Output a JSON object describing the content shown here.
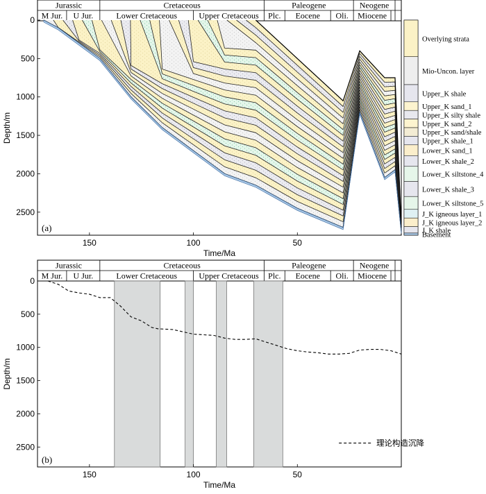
{
  "chart_data": [
    {
      "type": "area",
      "panel_label": "(a)",
      "xlabel": "Time/Ma",
      "ylabel": "Depth/m",
      "xlim": [
        175,
        0
      ],
      "ylim": [
        2800,
        0
      ],
      "xticks": [
        150,
        100,
        50
      ],
      "yticks": [
        0,
        500,
        1000,
        1500,
        2000,
        2500
      ],
      "periods": [
        {
          "name": "Jurassic",
          "start": 175,
          "end": 145
        },
        {
          "name": "Cretaceous",
          "start": 145,
          "end": 66
        },
        {
          "name": "Paleogene",
          "start": 66,
          "end": 23
        },
        {
          "name": "Neogene",
          "start": 23,
          "end": 3
        },
        {
          "name": "",
          "start": 3,
          "end": 0
        }
      ],
      "epochs": [
        {
          "name": "M Jur.",
          "start": 175,
          "end": 161
        },
        {
          "name": "U Jur.",
          "start": 161,
          "end": 145
        },
        {
          "name": "Lower Cretaceous",
          "start": 145,
          "end": 100
        },
        {
          "name": "Upper Cretaceous",
          "start": 100,
          "end": 66
        },
        {
          "name": "Plc.",
          "start": 66,
          "end": 56
        },
        {
          "name": "Eocene",
          "start": 56,
          "end": 34
        },
        {
          "name": "Oli.",
          "start": 34,
          "end": 23
        },
        {
          "name": "Miocene",
          "start": 23,
          "end": 5
        },
        {
          "name": "",
          "start": 5,
          "end": 3
        },
        {
          "name": "",
          "start": 3,
          "end": 0
        }
      ],
      "base_times": [
        172,
        165,
        155,
        145,
        130,
        115,
        100,
        85,
        70,
        50,
        28,
        20,
        8,
        3,
        0
      ],
      "base_depth": [
        0,
        100,
        300,
        500,
        1000,
        1400,
        1700,
        2000,
        2150,
        2450,
        2700,
        1200,
        2050,
        1950,
        2750
      ],
      "surface_depth": [
        0,
        0,
        0,
        0,
        0,
        0,
        0,
        0,
        0,
        500,
        1050,
        400,
        750,
        750,
        2700
      ],
      "legend": [
        "Overlying strata",
        "Mio-Uncon. layer",
        "Upper_K shale",
        "Upper_K sand_1",
        "Upper_K silty shale",
        "Upper_K sand_2",
        "Upper_K sand/shale",
        "Upper_K shale_1",
        "Lower_K sand_1",
        "Lower_K shale_2",
        "Lower_K siltstone_4",
        "Lower_K shale_3",
        "Lower_K siltstone_5",
        "J_K igneous layer_1",
        "J_K igneous layer_2",
        "J_K shale",
        "Basement"
      ],
      "legend_fill": {
        "Overlying strata": "#fbf2c6",
        "Mio-Uncon. layer": "#eeeeee",
        "Upper_K shale": "#e6e6ee",
        "Upper_K sand_1": "#fdf4cf",
        "Upper_K silty shale": "#e8e8ee",
        "Upper_K sand_2": "#fdf4cf",
        "Upper_K sand/shale": "#f3ecd4",
        "Upper_K shale_1": "#e6e6ee",
        "Lower_K sand_1": "#fbeecb",
        "Lower_K shale_2": "#e6e6ee",
        "Lower_K siltstone_4": "#e6f6ea",
        "Lower_K shale_3": "#e6e6ee",
        "Lower_K siltstone_5": "#e6f6ea",
        "J_K igneous layer_1": "#dff1f4",
        "J_K igneous layer_2": "#fbeecb",
        "J_K shale": "#e6e6ee",
        "Basement": "#a9c8e6"
      }
    },
    {
      "type": "line",
      "panel_label": "(b)",
      "xlabel": "Time/Ma",
      "ylabel": "Depth/m",
      "xlim": [
        175,
        0
      ],
      "ylim": [
        2800,
        0
      ],
      "xticks": [
        150,
        100,
        50
      ],
      "yticks": [
        0,
        500,
        1000,
        1500,
        2000,
        2500
      ],
      "series": [
        {
          "name": "理论构造沉降",
          "style": "dashed",
          "x": [
            170,
            165,
            160,
            155,
            150,
            145,
            140,
            135,
            130,
            125,
            120,
            117,
            110,
            100,
            95,
            90,
            85,
            80,
            75,
            70,
            65,
            60,
            55,
            50,
            45,
            40,
            35,
            30,
            25,
            20,
            15,
            10,
            5,
            0
          ],
          "y": [
            0,
            50,
            150,
            180,
            200,
            250,
            250,
            380,
            540,
            600,
            700,
            720,
            730,
            800,
            810,
            820,
            860,
            880,
            880,
            870,
            920,
            970,
            1020,
            1050,
            1070,
            1080,
            1100,
            1100,
            1090,
            1040,
            1030,
            1030,
            1050,
            1100
          ]
        }
      ],
      "shaded_intervals_ma": [
        [
          138,
          116
        ],
        [
          104,
          100
        ],
        [
          89,
          84
        ],
        [
          71,
          57
        ]
      ],
      "periods": [
        {
          "name": "Jurassic",
          "start": 175,
          "end": 145
        },
        {
          "name": "Cretaceous",
          "start": 145,
          "end": 66
        },
        {
          "name": "Paleogene",
          "start": 66,
          "end": 23
        },
        {
          "name": "Neogene",
          "start": 23,
          "end": 3
        },
        {
          "name": "",
          "start": 3,
          "end": 0
        }
      ],
      "epochs": [
        {
          "name": "M Jur.",
          "start": 175,
          "end": 161
        },
        {
          "name": "U Jur.",
          "start": 161,
          "end": 145
        },
        {
          "name": "Lower Cretaceous",
          "start": 145,
          "end": 100
        },
        {
          "name": "Upper Cretaceous",
          "start": 100,
          "end": 66
        },
        {
          "name": "Plc.",
          "start": 66,
          "end": 56
        },
        {
          "name": "Eocene",
          "start": 56,
          "end": 34
        },
        {
          "name": "Oli.",
          "start": 34,
          "end": 23
        },
        {
          "name": "Miocene",
          "start": 23,
          "end": 5
        },
        {
          "name": "",
          "start": 5,
          "end": 3
        },
        {
          "name": "",
          "start": 3,
          "end": 0
        }
      ]
    }
  ]
}
